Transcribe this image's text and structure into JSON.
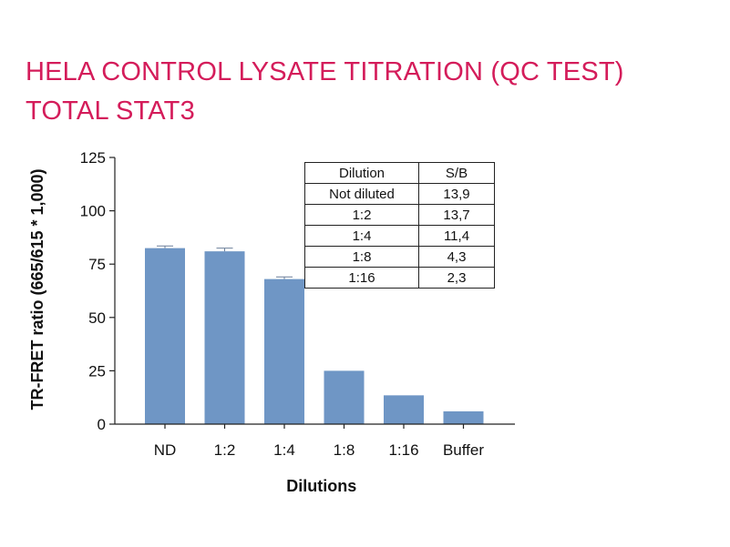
{
  "title": {
    "line1": "HELA CONTROL LYSATE TITRATION (QC TEST)",
    "line2": "TOTAL STAT3"
  },
  "colors": {
    "title": "#d41c5a",
    "bar": "#6f96c5",
    "axis": "#222222"
  },
  "chart_data": {
    "type": "bar",
    "categories": [
      "ND",
      "1:2",
      "1:4",
      "1:8",
      "1:16",
      "Buffer"
    ],
    "values": [
      82.5,
      81,
      68,
      25,
      13.5,
      6
    ],
    "error": [
      1,
      1.5,
      1,
      0,
      0,
      0
    ],
    "xlabel": "Dilutions",
    "ylabel": "TR-FRET ratio (665/615 * 1,000)",
    "ylim": [
      0,
      125
    ],
    "yticks": [
      0,
      25,
      50,
      75,
      100,
      125
    ],
    "grid": false,
    "legend": "none"
  },
  "table": {
    "headers": [
      "Dilution",
      "S/B"
    ],
    "rows": [
      [
        "Not diluted",
        "13,9"
      ],
      [
        "1:2",
        "13,7"
      ],
      [
        "1:4",
        "11,4"
      ],
      [
        "1:8",
        "4,3"
      ],
      [
        "1:16",
        "2,3"
      ]
    ]
  }
}
